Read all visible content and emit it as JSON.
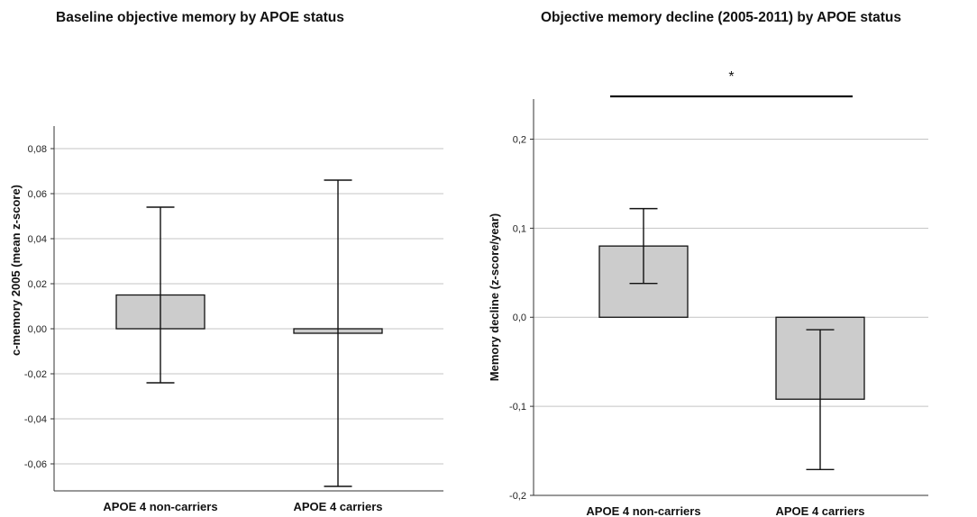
{
  "chart_data": [
    {
      "type": "bar",
      "title": "Baseline objective memory by APOE status",
      "xlabel": "",
      "ylabel": "c-memory 2005 (mean z-score)",
      "categories": [
        "APOE 4 non-carriers",
        "APOE 4 carriers"
      ],
      "values": [
        0.015,
        -0.002
      ],
      "error_low": [
        -0.024,
        -0.07
      ],
      "error_high": [
        0.054,
        0.066
      ],
      "ylim": [
        -0.072,
        0.09
      ],
      "yticks": [
        -0.06,
        -0.04,
        -0.02,
        0.0,
        0.02,
        0.04,
        0.06,
        0.08
      ],
      "ytick_labels": [
        "-0,06",
        "-0,04",
        "-0,02",
        "0,00",
        "0,02",
        "0,04",
        "0,06",
        "0,08"
      ],
      "grid": true,
      "annotation": ""
    },
    {
      "type": "bar",
      "title": "Objective memory decline (2005-2011) by APOE status",
      "xlabel": "",
      "ylabel": "Memory decline (z-score/year)",
      "categories": [
        "APOE 4 non-carriers",
        "APOE 4 carriers"
      ],
      "values": [
        0.08,
        -0.092
      ],
      "error_low": [
        0.038,
        -0.171
      ],
      "error_high": [
        0.122,
        -0.014
      ],
      "ylim": [
        -0.2,
        0.245
      ],
      "yticks": [
        -0.2,
        -0.1,
        0.0,
        0.1,
        0.2
      ],
      "ytick_labels": [
        "-0,2",
        "-0,1",
        "0,0",
        "0,1",
        "0,2"
      ],
      "grid": true,
      "annotation": "*"
    }
  ],
  "colors": {
    "bar_fill": "#cccccc",
    "stroke": "#111111",
    "grid": "#c4c4c4"
  }
}
